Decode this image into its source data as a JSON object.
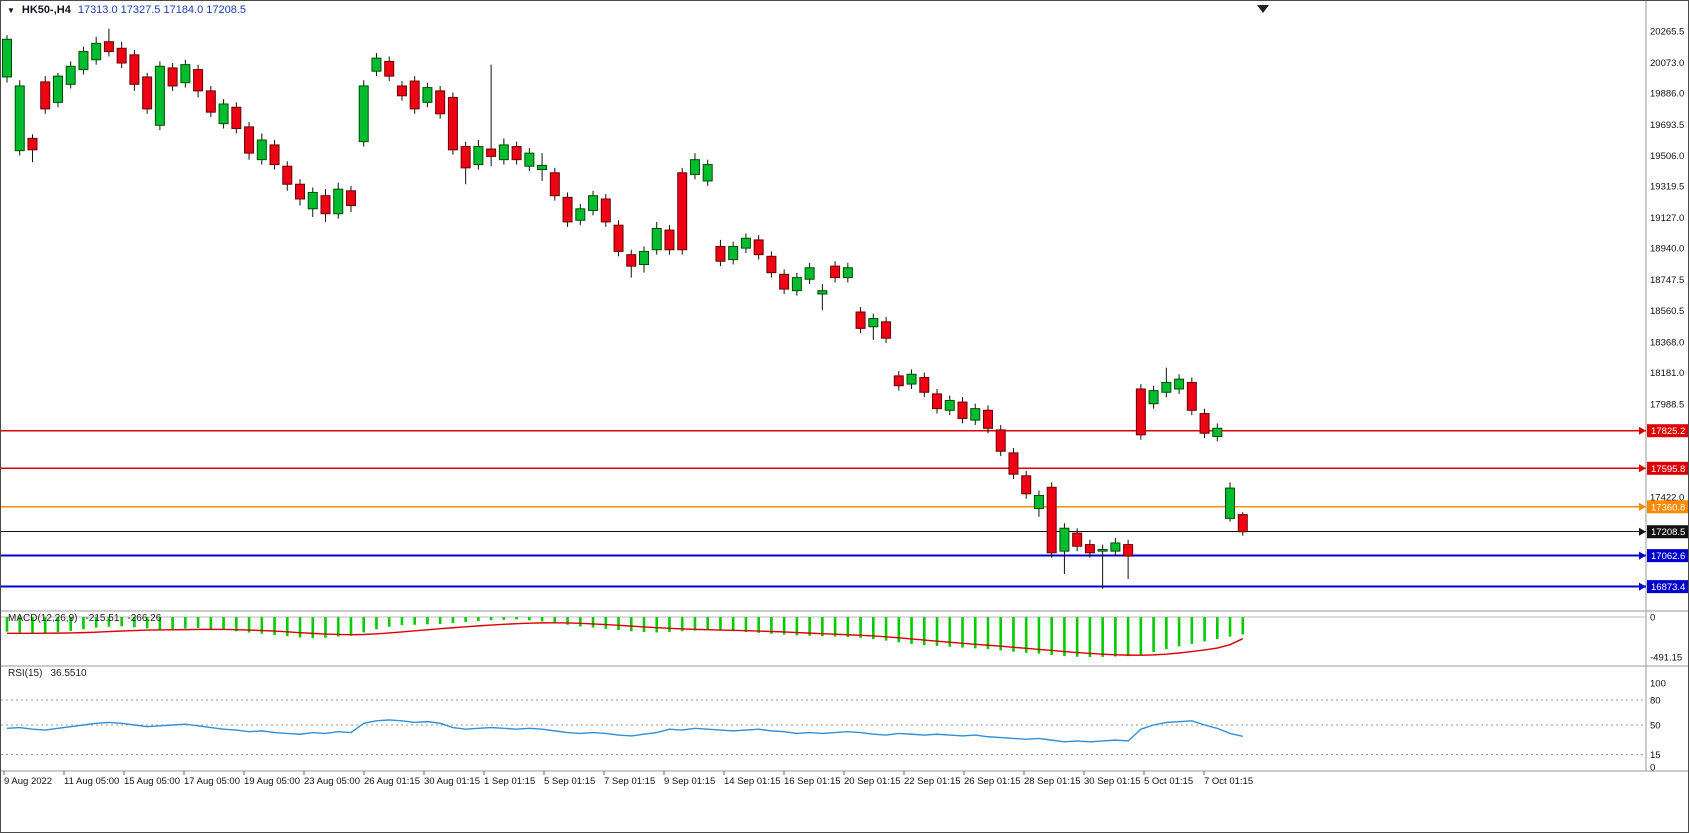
{
  "header": {
    "dropdown_arrow": "▼",
    "symbol_period": "HK50-,H4",
    "ohlc": "17313.0 17327.5 17184.0 17208.5"
  },
  "indicators": {
    "macd": {
      "label": "MACD(12,26,9)",
      "value": "-215.51",
      "signal_value": "-266.26",
      "axis_max_label": "0",
      "axis_min_label": "-491.15"
    },
    "rsi": {
      "label": "RSI(15)",
      "value": "36.5510",
      "level_labels": [
        "100",
        "80",
        "50",
        "15",
        "0"
      ]
    }
  },
  "colors": {
    "bull": "#00bd2f",
    "bull_border": "#004d00",
    "bear": "#ef0214",
    "bear_border": "#6a0000",
    "wick": "#111111",
    "macd_histogram": "#00cc00",
    "macd_signal": "#dd0000",
    "rsi_line": "#2f8fd9",
    "separator": "#9a9a9a",
    "axis_text": "#111111"
  },
  "chart_data": {
    "type": "candlestick",
    "symbol": "HK50-",
    "timeframe": "H4",
    "current_bar": {
      "open": 17313.0,
      "high": 17327.5,
      "low": 17184.0,
      "close": 17208.5
    },
    "price_axis_ticks": [
      "20265.5",
      "20073.0",
      "19886.0",
      "19693.5",
      "19506.0",
      "19319.5",
      "19127.0",
      "18940.0",
      "18747.5",
      "18560.5",
      "18368.0",
      "18181.0",
      "17988.5",
      "17422.0"
    ],
    "time_labels": [
      "9 Aug 2022",
      "11 Aug 05:00",
      "15 Aug 05:00",
      "17 Aug 05:00",
      "19 Aug 05:00",
      "23 Aug 05:00",
      "26 Aug 01:15",
      "30 Aug 01:15",
      "1 Sep 01:15",
      "5 Sep 01:15",
      "7 Sep 01:15",
      "9 Sep 01:15",
      "14 Sep 01:15",
      "16 Sep 01:15",
      "20 Sep 01:15",
      "22 Sep 01:15",
      "26 Sep 01:15",
      "28 Sep 01:15",
      "30 Sep 01:15",
      "5 Oct 01:15",
      "7 Oct 01:15"
    ],
    "horizontal_levels": [
      {
        "label": "17825.2",
        "price": 17825.2,
        "color": "#dd0000",
        "width": 1.6,
        "style": "solid",
        "role": "resistance"
      },
      {
        "label": "17595.8",
        "price": 17595.8,
        "color": "#dd0000",
        "width": 1.6,
        "style": "solid",
        "role": "resistance"
      },
      {
        "label": "17360.8",
        "price": 17360.8,
        "color": "#ff8a00",
        "width": 1.6,
        "style": "solid",
        "role": "level"
      },
      {
        "label": "17208.5",
        "price": 17208.5,
        "color": "#111111",
        "width": 1,
        "style": "solid",
        "role": "current-price"
      },
      {
        "label": "17062.6",
        "price": 17062.6,
        "color": "#0000cc",
        "width": 2,
        "style": "solid",
        "role": "support"
      },
      {
        "label": "16873.4",
        "price": 16873.4,
        "color": "#0000cc",
        "width": 2,
        "style": "solid",
        "role": "support"
      }
    ],
    "candles": [
      [
        19985,
        20240,
        19950,
        20215
      ],
      [
        19535,
        19965,
        19505,
        19930
      ],
      [
        19610,
        19635,
        19465,
        19540
      ],
      [
        19955,
        19990,
        19760,
        19790
      ],
      [
        19830,
        20010,
        19800,
        19990
      ],
      [
        19940,
        20080,
        19915,
        20050
      ],
      [
        20030,
        20170,
        20000,
        20140
      ],
      [
        20090,
        20230,
        20060,
        20190
      ],
      [
        20200,
        20280,
        20110,
        20140
      ],
      [
        20160,
        20200,
        20040,
        20070
      ],
      [
        20120,
        20150,
        19900,
        19940
      ],
      [
        19985,
        20010,
        19760,
        19790
      ],
      [
        19690,
        20080,
        19660,
        20050
      ],
      [
        20040,
        20070,
        19900,
        19930
      ],
      [
        19950,
        20090,
        19920,
        20060
      ],
      [
        20030,
        20060,
        19860,
        19900
      ],
      [
        19900,
        19930,
        19740,
        19770
      ],
      [
        19700,
        19850,
        19670,
        19820
      ],
      [
        19800,
        19830,
        19640,
        19670
      ],
      [
        19680,
        19710,
        19480,
        19520
      ],
      [
        19480,
        19640,
        19450,
        19600
      ],
      [
        19570,
        19600,
        19420,
        19450
      ],
      [
        19440,
        19470,
        19290,
        19330
      ],
      [
        19330,
        19360,
        19200,
        19240
      ],
      [
        19180,
        19310,
        19130,
        19280
      ],
      [
        19260,
        19300,
        19100,
        19150
      ],
      [
        19150,
        19340,
        19120,
        19300
      ],
      [
        19290,
        19320,
        19160,
        19200
      ],
      [
        19590,
        19965,
        19560,
        19930
      ],
      [
        20020,
        20130,
        19990,
        20100
      ],
      [
        20080,
        20110,
        19960,
        19990
      ],
      [
        19930,
        19960,
        19840,
        19870
      ],
      [
        19960,
        19990,
        19760,
        19790
      ],
      [
        19830,
        19950,
        19800,
        19920
      ],
      [
        19900,
        19930,
        19730,
        19760
      ],
      [
        19860,
        19890,
        19510,
        19540
      ],
      [
        19560,
        19590,
        19330,
        19430
      ],
      [
        19450,
        19600,
        19420,
        19560
      ],
      [
        19545,
        20060,
        19440,
        19500
      ],
      [
        19480,
        19610,
        19450,
        19570
      ],
      [
        19560,
        19590,
        19450,
        19480
      ],
      [
        19440,
        19550,
        19410,
        19520
      ],
      [
        19420,
        19520,
        19350,
        19445
      ],
      [
        19400,
        19430,
        19230,
        19260
      ],
      [
        19250,
        19280,
        19070,
        19100
      ],
      [
        19110,
        19210,
        19080,
        19180
      ],
      [
        19170,
        19290,
        19140,
        19260
      ],
      [
        19240,
        19270,
        19070,
        19100
      ],
      [
        19080,
        19110,
        18890,
        18920
      ],
      [
        18900,
        18930,
        18760,
        18830
      ],
      [
        18840,
        18950,
        18790,
        18920
      ],
      [
        18930,
        19100,
        18900,
        19060
      ],
      [
        19050,
        19080,
        18900,
        18930
      ],
      [
        19400,
        19430,
        18900,
        18930
      ],
      [
        19390,
        19520,
        19360,
        19480
      ],
      [
        19350,
        19480,
        19320,
        19450
      ],
      [
        18950,
        18990,
        18830,
        18860
      ],
      [
        18870,
        18980,
        18840,
        18950
      ],
      [
        18940,
        19030,
        18910,
        19000
      ],
      [
        18990,
        19020,
        18870,
        18900
      ],
      [
        18890,
        18920,
        18760,
        18790
      ],
      [
        18780,
        18810,
        18660,
        18690
      ],
      [
        18680,
        18790,
        18650,
        18760
      ],
      [
        18750,
        18850,
        18720,
        18820
      ],
      [
        18660,
        18720,
        18560,
        18680
      ],
      [
        18830,
        18860,
        18730,
        18760
      ],
      [
        18760,
        18850,
        18730,
        18820
      ],
      [
        18550,
        18580,
        18420,
        18450
      ],
      [
        18460,
        18540,
        18380,
        18510
      ],
      [
        18490,
        18520,
        18360,
        18390
      ],
      [
        18160,
        18190,
        18070,
        18100
      ],
      [
        18110,
        18200,
        18080,
        18170
      ],
      [
        18150,
        18180,
        18030,
        18060
      ],
      [
        18050,
        18080,
        17930,
        17960
      ],
      [
        17950,
        18040,
        17920,
        18010
      ],
      [
        18000,
        18030,
        17870,
        17900
      ],
      [
        17890,
        17990,
        17860,
        17960
      ],
      [
        17950,
        17980,
        17810,
        17840
      ],
      [
        17830,
        17860,
        17670,
        17700
      ],
      [
        17690,
        17720,
        17530,
        17560
      ],
      [
        17550,
        17580,
        17410,
        17440
      ],
      [
        17350,
        17460,
        17300,
        17430
      ],
      [
        17480,
        17510,
        17050,
        17080
      ],
      [
        17090,
        17260,
        16950,
        17230
      ],
      [
        17200,
        17230,
        17090,
        17120
      ],
      [
        17130,
        17160,
        17050,
        17080
      ],
      [
        17090,
        17130,
        16860,
        17100
      ],
      [
        17090,
        17170,
        17060,
        17140
      ],
      [
        17130,
        17160,
        16920,
        17060
      ],
      [
        18080,
        18110,
        17770,
        17800
      ],
      [
        17990,
        18100,
        17960,
        18070
      ],
      [
        18060,
        18210,
        18030,
        18120
      ],
      [
        18080,
        18170,
        18050,
        18140
      ],
      [
        18120,
        18150,
        17920,
        17950
      ],
      [
        17930,
        17960,
        17780,
        17810
      ],
      [
        17790,
        17870,
        17760,
        17840
      ],
      [
        17290,
        17510,
        17270,
        17475
      ],
      [
        17313.0,
        17327.5,
        17184.0,
        17208.5
      ]
    ],
    "macd": {
      "histogram": [
        -180,
        -190,
        -200,
        -195,
        -185,
        -170,
        -150,
        -130,
        -120,
        -115,
        -125,
        -140,
        -160,
        -150,
        -140,
        -135,
        -145,
        -160,
        -175,
        -190,
        -205,
        -220,
        -235,
        -250,
        -260,
        -255,
        -240,
        -230,
        -190,
        -150,
        -120,
        -100,
        -95,
        -90,
        -85,
        -75,
        -60,
        -50,
        -40,
        -35,
        -30,
        -40,
        -55,
        -75,
        -95,
        -115,
        -130,
        -145,
        -160,
        -175,
        -185,
        -190,
        -185,
        -175,
        -165,
        -155,
        -165,
        -175,
        -185,
        -195,
        -205,
        -215,
        -225,
        -230,
        -235,
        -240,
        -245,
        -255,
        -270,
        -290,
        -310,
        -330,
        -345,
        -355,
        -365,
        -375,
        -385,
        -395,
        -410,
        -425,
        -440,
        -450,
        -465,
        -480,
        -488,
        -491.15,
        -490,
        -485,
        -480,
        -460,
        -430,
        -395,
        -360,
        -330,
        -300,
        -270,
        -240,
        -215.51
      ],
      "signal": [
        -200,
        -200,
        -200,
        -199,
        -198,
        -196,
        -192,
        -186,
        -179,
        -172,
        -166,
        -161,
        -159,
        -157,
        -155,
        -153,
        -152,
        -153,
        -156,
        -160,
        -166,
        -173,
        -182,
        -192,
        -201,
        -209,
        -214,
        -217,
        -215,
        -207,
        -196,
        -183,
        -170,
        -157,
        -144,
        -132,
        -120,
        -109,
        -99,
        -90,
        -82,
        -76,
        -72,
        -71,
        -73,
        -78,
        -85,
        -93,
        -102,
        -112,
        -122,
        -131,
        -139,
        -146,
        -152,
        -156,
        -160,
        -164,
        -168,
        -173,
        -178,
        -184,
        -191,
        -198,
        -205,
        -211,
        -218,
        -225,
        -233,
        -243,
        -255,
        -269,
        -283,
        -297,
        -310,
        -323,
        -335,
        -347,
        -359,
        -372,
        -385,
        -398,
        -411,
        -424,
        -437,
        -448,
        -457,
        -464,
        -468,
        -469,
        -465,
        -456,
        -442,
        -424,
        -404,
        -381,
        -340,
        -266.26
      ],
      "axis_range": [
        0,
        -491.15
      ]
    },
    "rsi": {
      "values": [
        46,
        47,
        45,
        44,
        46,
        48,
        50,
        52,
        53,
        52,
        50,
        48,
        49,
        50,
        51,
        49,
        47,
        45,
        44,
        42,
        43,
        41,
        40,
        39,
        41,
        40,
        42,
        41,
        52,
        55,
        56,
        55,
        53,
        54,
        52,
        47,
        45,
        46,
        47,
        46,
        45,
        46,
        45,
        43,
        41,
        40,
        41,
        40,
        38,
        37,
        39,
        41,
        45,
        44,
        46,
        45,
        44,
        43,
        44,
        45,
        43,
        42,
        40,
        41,
        40,
        41,
        42,
        41,
        39,
        38,
        40,
        39,
        38,
        39,
        38,
        37,
        38,
        36,
        35,
        34,
        33,
        34,
        32,
        30,
        31,
        30,
        31,
        32,
        31,
        45,
        50,
        53,
        54,
        55,
        50,
        46,
        40,
        36.55
      ],
      "levels": [
        100,
        80,
        50,
        15,
        0
      ],
      "range": [
        0,
        100
      ]
    }
  }
}
